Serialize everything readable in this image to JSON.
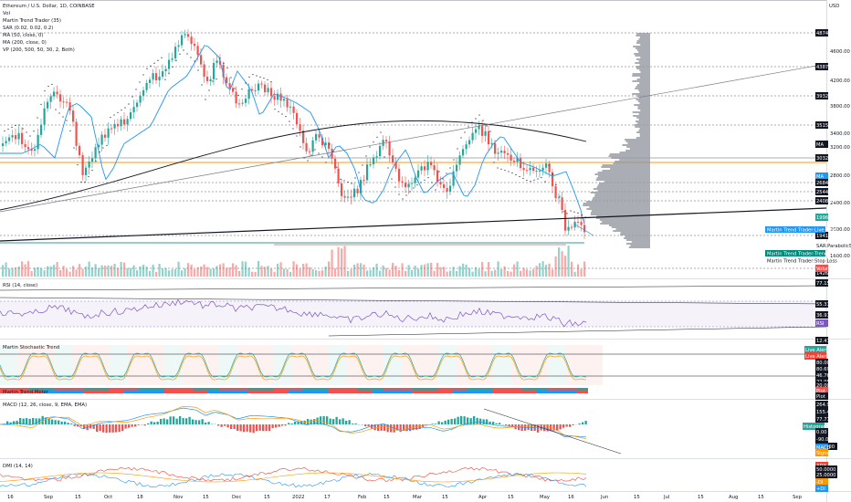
{
  "header": {
    "title": "Ethereum / U.S. Dollar, 1D, COINBASE",
    "indicators": [
      "Vol",
      "Martin Trend Trader (35)",
      "SAR (0.02, 0.02, 0.2)",
      "MA (50, close, 0)",
      "MA (200, close, 0)",
      "VP (200, 500, 50, 30, 2, Both)"
    ]
  },
  "currency": "USD",
  "price_axis": {
    "ticks": [
      "4600.00",
      "4200.00",
      "3800.00",
      "3400.00",
      "3200.00",
      "2800.00",
      "2400.00",
      "2000.00",
      "1600.00"
    ],
    "tags": [
      {
        "text": "4874.97",
        "bg": "#131722",
        "fg": "#ffffff"
      },
      {
        "text": "4387.37",
        "bg": "#131722",
        "fg": "#ffffff"
      },
      {
        "text": "3932.83",
        "bg": "#131722",
        "fg": "#ffffff"
      },
      {
        "text": "3515.82",
        "bg": "#131722",
        "fg": "#ffffff"
      },
      {
        "text": "MA",
        "bg": "#131722",
        "fg": "#ffffff"
      },
      {
        "text": "3032.01",
        "bg": "#131722",
        "fg": "#ffffff"
      },
      {
        "text": "MA",
        "bg": "#2196f3",
        "fg": "#ffffff"
      },
      {
        "text": "2684.91",
        "bg": "#131722",
        "fg": "#ffffff"
      },
      {
        "text": "2544.45",
        "bg": "#131722",
        "fg": "#ffffff"
      },
      {
        "text": "2408.10",
        "bg": "#131722",
        "fg": "#ffffff"
      },
      {
        "text": "1996.20",
        "bg": "#26a69a",
        "fg": "#ffffff"
      },
      {
        "text": "1941.11",
        "bg": "#131722",
        "fg": "#ffffff"
      },
      {
        "text": "SAR:ParabolicSAR",
        "bg": "#ffffff",
        "fg": "#131722"
      },
      {
        "text": "1426.78",
        "bg": "#131722",
        "fg": "#ffffff"
      },
      {
        "text": "Volume",
        "bg": "#ef5350",
        "fg": "#ffffff"
      }
    ],
    "side_labels": [
      {
        "text": "Martin Trend Trader:Live Alert",
        "bg": "#2196f3",
        "fg": "#ffffff"
      },
      {
        "text": "Martin Trend Trader:Trend Line",
        "bg": "#00897b",
        "fg": "#ffffff"
      },
      {
        "text": "Martin Trend Trader:Stop Loss",
        "bg": "#ffffff",
        "fg": "#131722"
      }
    ]
  },
  "rsi": {
    "title": "RSI (14, close)",
    "tags": [
      "77.15",
      "55.31",
      "36.91",
      "RSI"
    ]
  },
  "stoch": {
    "title": "Martin Stochastic Trend",
    "tags": [
      "12.41",
      "Live Alert",
      "Live Alert",
      "80.00",
      "80.69",
      "46.76",
      "22.98",
      "20.00"
    ]
  },
  "meter": {
    "title": "Martin Trend Meter",
    "tags": [
      "Plot",
      "Plot"
    ]
  },
  "macd": {
    "title": "MACD (12, 26, close, 9, EMA, EMA)",
    "tags": [
      "264.91",
      "155.46",
      "77.77",
      "Histogram",
      "0.00",
      "-90.00",
      "-200.00",
      "MACD",
      "Signal"
    ]
  },
  "dmi": {
    "title": "DMI (14, 14)",
    "tags": [
      "ADX",
      "50.0000",
      "25.0000",
      "-DI",
      "+DI"
    ]
  },
  "time_axis": [
    "16",
    "Sep",
    "15",
    "Oct",
    "18",
    "Nov",
    "15",
    "Dec",
    "15",
    "2022",
    "17",
    "Feb",
    "15",
    "Mar",
    "15",
    "Apr",
    "15",
    "May",
    "16",
    "Jun",
    "15",
    "Jul",
    "15",
    "Aug",
    "15",
    "Sep"
  ],
  "colors": {
    "up": "#26a69a",
    "down": "#ef5350",
    "ma50": "#2196f3",
    "ma200": "#131722",
    "rsi": "#7e57c2",
    "orange": "#ff9800"
  }
}
